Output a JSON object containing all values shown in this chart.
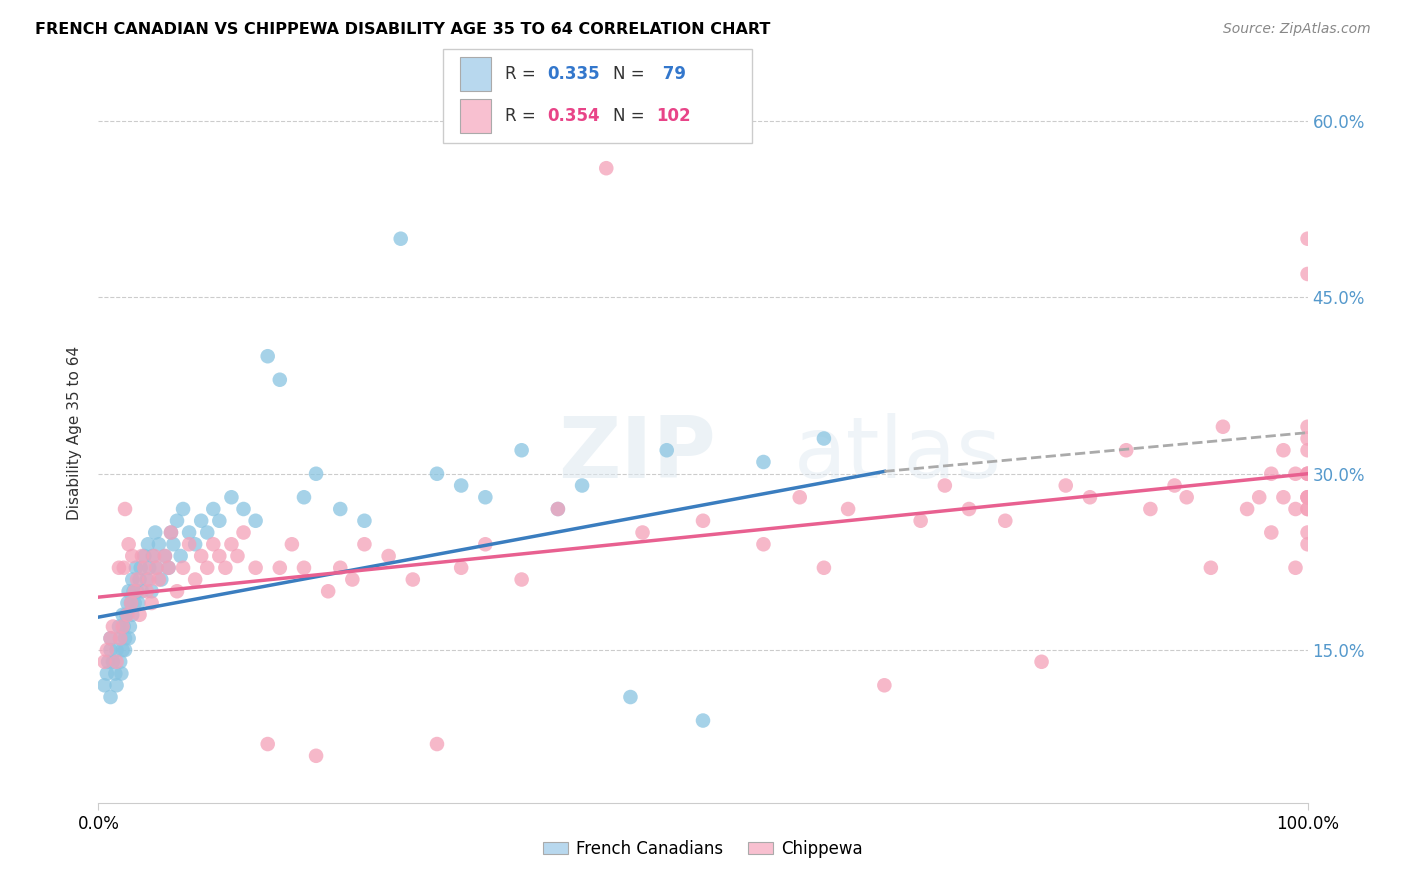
{
  "title": "FRENCH CANADIAN VS CHIPPEWA DISABILITY AGE 35 TO 64 CORRELATION CHART",
  "source": "Source: ZipAtlas.com",
  "ylabel": "Disability Age 35 to 64",
  "xlim": [
    0.0,
    1.0
  ],
  "ylim": [
    0.02,
    0.65
  ],
  "ytick_positions": [
    0.15,
    0.3,
    0.45,
    0.6
  ],
  "ytick_labels": [
    "15.0%",
    "30.0%",
    "45.0%",
    "60.0%"
  ],
  "color_blue": "#89c4e1",
  "color_pink": "#f4a0b8",
  "color_blue_line": "#3a7dbf",
  "color_pink_line": "#e86090",
  "color_dashed_line": "#aaaaaa",
  "legend_color_blue": "#b8d8ee",
  "legend_color_pink": "#f8c0d0",
  "watermark_zip": "ZIP",
  "watermark_atlas": "atlas",
  "french_x": [
    0.005,
    0.007,
    0.008,
    0.01,
    0.01,
    0.01,
    0.012,
    0.014,
    0.015,
    0.015,
    0.017,
    0.018,
    0.018,
    0.019,
    0.02,
    0.02,
    0.021,
    0.022,
    0.022,
    0.023,
    0.024,
    0.025,
    0.025,
    0.026,
    0.027,
    0.028,
    0.028,
    0.029,
    0.03,
    0.031,
    0.032,
    0.033,
    0.034,
    0.035,
    0.036,
    0.038,
    0.04,
    0.041,
    0.042,
    0.044,
    0.045,
    0.047,
    0.048,
    0.05,
    0.052,
    0.055,
    0.058,
    0.06,
    0.062,
    0.065,
    0.068,
    0.07,
    0.075,
    0.08,
    0.085,
    0.09,
    0.095,
    0.1,
    0.11,
    0.12,
    0.13,
    0.14,
    0.15,
    0.17,
    0.18,
    0.2,
    0.22,
    0.25,
    0.28,
    0.3,
    0.32,
    0.35,
    0.38,
    0.4,
    0.44,
    0.47,
    0.5,
    0.55,
    0.6
  ],
  "french_y": [
    0.12,
    0.13,
    0.14,
    0.15,
    0.11,
    0.16,
    0.14,
    0.13,
    0.15,
    0.12,
    0.17,
    0.14,
    0.16,
    0.13,
    0.15,
    0.18,
    0.17,
    0.16,
    0.15,
    0.18,
    0.19,
    0.16,
    0.2,
    0.17,
    0.19,
    0.18,
    0.21,
    0.2,
    0.19,
    0.22,
    0.2,
    0.19,
    0.21,
    0.22,
    0.2,
    0.23,
    0.21,
    0.24,
    0.22,
    0.2,
    0.23,
    0.25,
    0.22,
    0.24,
    0.21,
    0.23,
    0.22,
    0.25,
    0.24,
    0.26,
    0.23,
    0.27,
    0.25,
    0.24,
    0.26,
    0.25,
    0.27,
    0.26,
    0.28,
    0.27,
    0.26,
    0.4,
    0.38,
    0.28,
    0.3,
    0.27,
    0.26,
    0.5,
    0.3,
    0.29,
    0.28,
    0.32,
    0.27,
    0.29,
    0.11,
    0.32,
    0.09,
    0.31,
    0.33
  ],
  "chippewa_x": [
    0.005,
    0.007,
    0.01,
    0.012,
    0.015,
    0.017,
    0.018,
    0.02,
    0.021,
    0.022,
    0.024,
    0.025,
    0.027,
    0.028,
    0.03,
    0.032,
    0.034,
    0.036,
    0.038,
    0.04,
    0.042,
    0.044,
    0.046,
    0.048,
    0.05,
    0.055,
    0.058,
    0.06,
    0.065,
    0.07,
    0.075,
    0.08,
    0.085,
    0.09,
    0.095,
    0.1,
    0.105,
    0.11,
    0.115,
    0.12,
    0.13,
    0.14,
    0.15,
    0.16,
    0.17,
    0.18,
    0.19,
    0.2,
    0.21,
    0.22,
    0.24,
    0.26,
    0.28,
    0.3,
    0.32,
    0.35,
    0.38,
    0.42,
    0.45,
    0.5,
    0.55,
    0.58,
    0.6,
    0.62,
    0.65,
    0.68,
    0.7,
    0.72,
    0.75,
    0.78,
    0.8,
    0.82,
    0.85,
    0.87,
    0.89,
    0.9,
    0.92,
    0.93,
    0.95,
    0.96,
    0.97,
    0.97,
    0.98,
    0.98,
    0.99,
    0.99,
    0.99,
    1.0,
    1.0,
    1.0,
    1.0,
    1.0,
    1.0,
    1.0,
    1.0,
    1.0,
    1.0,
    1.0,
    1.0,
    1.0,
    1.0,
    1.0
  ],
  "chippewa_y": [
    0.14,
    0.15,
    0.16,
    0.17,
    0.14,
    0.22,
    0.16,
    0.17,
    0.22,
    0.27,
    0.18,
    0.24,
    0.19,
    0.23,
    0.2,
    0.21,
    0.18,
    0.23,
    0.22,
    0.2,
    0.21,
    0.19,
    0.23,
    0.22,
    0.21,
    0.23,
    0.22,
    0.25,
    0.2,
    0.22,
    0.24,
    0.21,
    0.23,
    0.22,
    0.24,
    0.23,
    0.22,
    0.24,
    0.23,
    0.25,
    0.22,
    0.07,
    0.22,
    0.24,
    0.22,
    0.06,
    0.2,
    0.22,
    0.21,
    0.24,
    0.23,
    0.21,
    0.07,
    0.22,
    0.24,
    0.21,
    0.27,
    0.56,
    0.25,
    0.26,
    0.24,
    0.28,
    0.22,
    0.27,
    0.12,
    0.26,
    0.29,
    0.27,
    0.26,
    0.14,
    0.29,
    0.28,
    0.32,
    0.27,
    0.29,
    0.28,
    0.22,
    0.34,
    0.27,
    0.28,
    0.25,
    0.3,
    0.28,
    0.32,
    0.27,
    0.3,
    0.22,
    0.3,
    0.28,
    0.25,
    0.27,
    0.32,
    0.34,
    0.28,
    0.27,
    0.3,
    0.24,
    0.47,
    0.33,
    0.28,
    0.3,
    0.5
  ],
  "blue_line_x": [
    0.0,
    0.65
  ],
  "blue_line_y": [
    0.178,
    0.302
  ],
  "dash_line_x": [
    0.65,
    1.0
  ],
  "dash_line_y": [
    0.302,
    0.335
  ],
  "pink_line_x": [
    0.0,
    1.0
  ],
  "pink_line_y": [
    0.195,
    0.3
  ]
}
